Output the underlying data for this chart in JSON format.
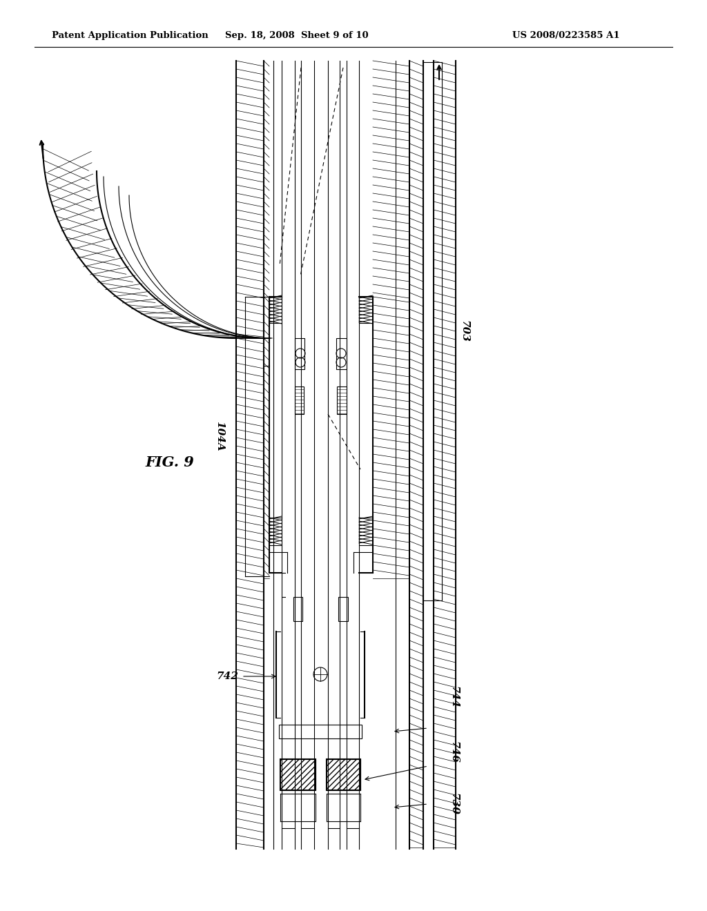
{
  "title_left": "Patent Application Publication",
  "title_center": "Sep. 18, 2008  Sheet 9 of 10",
  "title_right": "US 2008/0223585 A1",
  "fig_label": "FIG. 9",
  "background": "#ffffff",
  "line_color": "#000000"
}
